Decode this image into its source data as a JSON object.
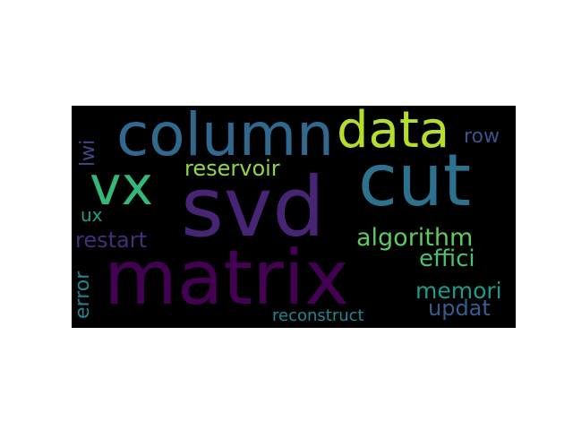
{
  "wordcloud": {
    "background": "#000000",
    "words": [
      {
        "text": "matrix",
        "color": "#440154",
        "rotated": false
      },
      {
        "text": "svd",
        "color": "#482475",
        "rotated": false
      },
      {
        "text": "cut",
        "color": "#2c728e",
        "rotated": false
      },
      {
        "text": "column",
        "color": "#31688e",
        "rotated": false
      },
      {
        "text": "data",
        "color": "#b5de2b",
        "rotated": false
      },
      {
        "text": "vx",
        "color": "#35b779",
        "rotated": false
      },
      {
        "text": "reservoir",
        "color": "#90d743",
        "rotated": false
      },
      {
        "text": "row",
        "color": "#3b528b",
        "rotated": false
      },
      {
        "text": "lwi",
        "color": "#3e4a89",
        "rotated": true
      },
      {
        "text": "ux",
        "color": "#1f9e89",
        "rotated": false
      },
      {
        "text": "restart",
        "color": "#472d7b",
        "rotated": false
      },
      {
        "text": "algorithm",
        "color": "#5ec962",
        "rotated": false
      },
      {
        "text": "effici",
        "color": "#4ac16d",
        "rotated": false
      },
      {
        "text": "error",
        "color": "#26828e",
        "rotated": true
      },
      {
        "text": "memori",
        "color": "#1f9a8a",
        "rotated": false
      },
      {
        "text": "updat",
        "color": "#365c8d",
        "rotated": false
      },
      {
        "text": "reconstruct",
        "color": "#23888e",
        "rotated": false
      }
    ]
  }
}
